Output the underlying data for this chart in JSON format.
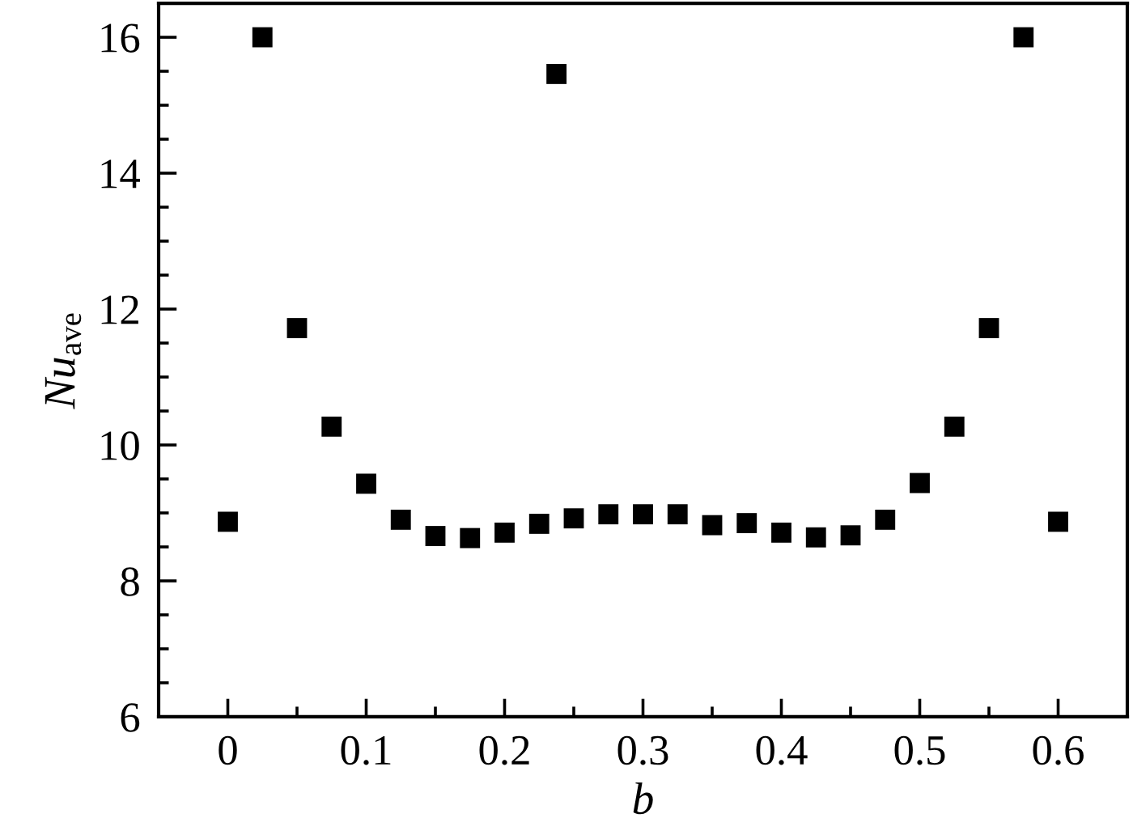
{
  "chart_data": {
    "type": "scatter",
    "xlabel": "b",
    "ylabel": "Nu$_{ave}$",
    "x": [
      0,
      0.025,
      0.05,
      0.075,
      0.1,
      0.125,
      0.15,
      0.175,
      0.2,
      0.225,
      0.2375,
      0.25,
      0.275,
      0.3,
      0.325,
      0.35,
      0.375,
      0.4,
      0.425,
      0.45,
      0.475,
      0.5,
      0.525,
      0.55,
      0.575,
      0.6
    ],
    "series": [
      {
        "color": "#000000",
        "values": [
          8.87,
          16.0,
          11.72,
          10.27,
          9.43,
          8.9,
          8.66,
          8.63,
          8.71,
          8.84,
          15.46,
          8.92,
          8.98,
          8.98,
          8.98,
          8.82,
          8.85,
          8.71,
          8.64,
          8.67,
          8.9,
          9.44,
          10.27,
          11.72,
          16.0,
          8.87
        ]
      }
    ],
    "xlim": [
      -0.05,
      0.65
    ],
    "ylim": [
      6,
      16.5
    ],
    "xticks": [
      0,
      0.1,
      0.2,
      0.3,
      0.4,
      0.5,
      0.6
    ],
    "yticks": [
      6,
      8,
      10,
      12,
      14,
      16
    ],
    "marker": "square",
    "grid": false
  }
}
